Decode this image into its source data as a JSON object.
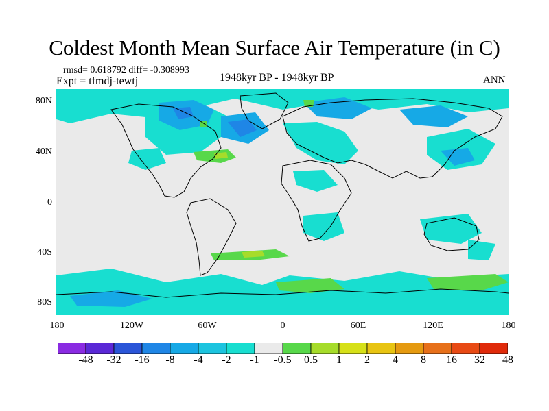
{
  "title": "Coldest Month Mean Surface Air Temperature (in C)",
  "stats": "rmsd= 0.618792  diff= -0.308993",
  "experiment": "Expt = tfmdj-tewtj",
  "period": "1948kyr BP - 1948kyr BP",
  "season": "ANN",
  "lat_ticks": [
    "80N",
    "40N",
    "0",
    "40S",
    "80S"
  ],
  "lon_ticks": [
    "180",
    "120W",
    "60W",
    "0",
    "60E",
    "120E",
    "180"
  ],
  "colorbar": {
    "colors": [
      "#8a2be2",
      "#5a28d6",
      "#2a55d8",
      "#1f86e6",
      "#16a9e6",
      "#1cc4df",
      "#18ded0",
      "#eaeaea",
      "#58d84a",
      "#a6dc2a",
      "#d6e018",
      "#e8c412",
      "#e59a10",
      "#e7701a",
      "#e84a14",
      "#e02a0a"
    ],
    "labels": [
      "-48",
      "-32",
      "-16",
      "-8",
      "-4",
      "-2",
      "-1",
      "-0.5",
      "0.5",
      "1",
      "2",
      "4",
      "8",
      "16",
      "32",
      "48"
    ]
  },
  "colors": {
    "background": "#eaeaea",
    "neg_light": "#18ded0",
    "neg_mid": "#16a9e6",
    "neg_strong": "#1f86e6",
    "pos_light": "#58d84a",
    "pos_mid": "#a6dc2a"
  }
}
